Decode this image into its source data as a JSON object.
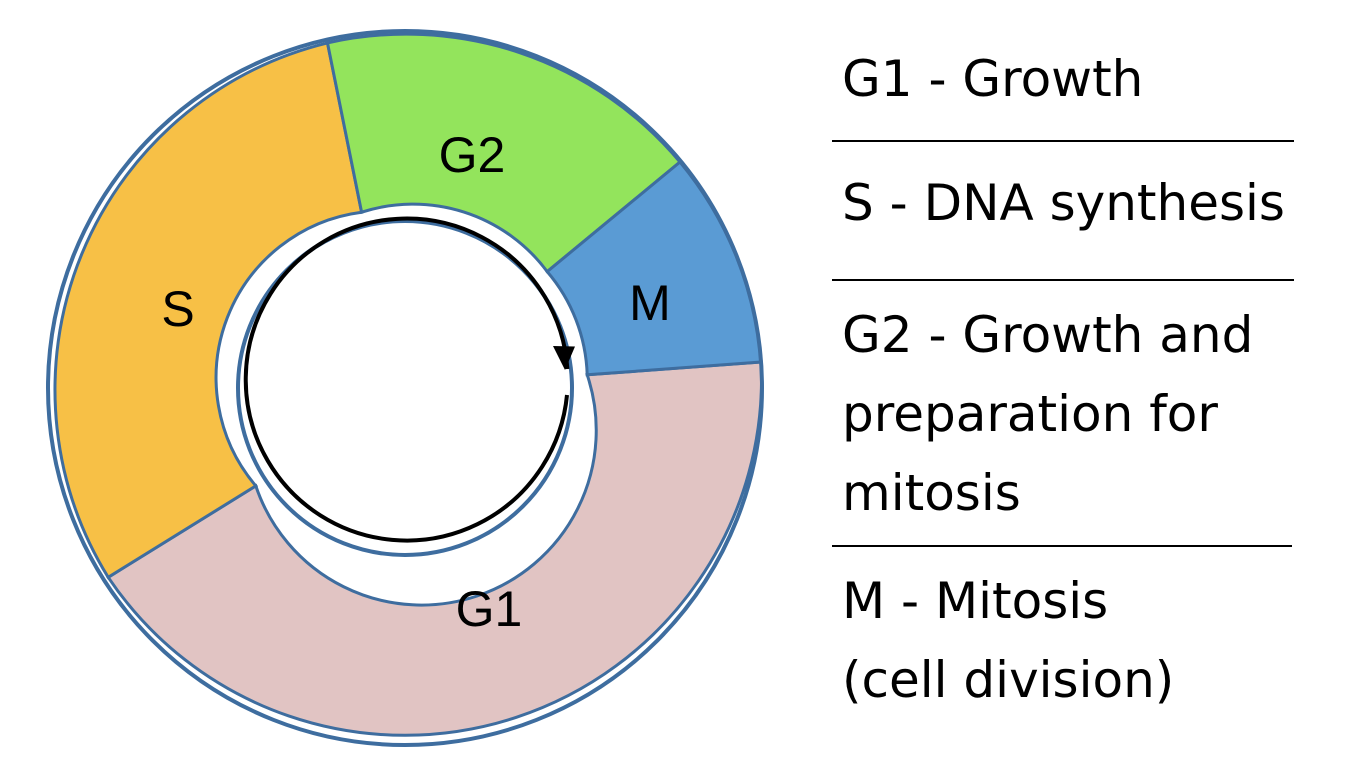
{
  "diagram": {
    "phases": [
      {
        "id": "G1",
        "label": "G1",
        "color": "#e1c4c3"
      },
      {
        "id": "S",
        "label": "S",
        "color": "#f7c046"
      },
      {
        "id": "G2",
        "label": "G2",
        "color": "#93e45c"
      },
      {
        "id": "M",
        "label": "M",
        "color": "#5a9bd4"
      }
    ],
    "outline_color": "#3e6d9f"
  },
  "legend": {
    "entries": [
      {
        "lines": [
          "G1 - Growth"
        ]
      },
      {
        "lines": [
          "S - DNA synthesis"
        ]
      },
      {
        "lines": [
          "G2 - Growth and",
          "preparation for",
          "mitosis"
        ]
      },
      {
        "lines": [
          "M - Mitosis",
          "(cell division)"
        ]
      }
    ]
  }
}
